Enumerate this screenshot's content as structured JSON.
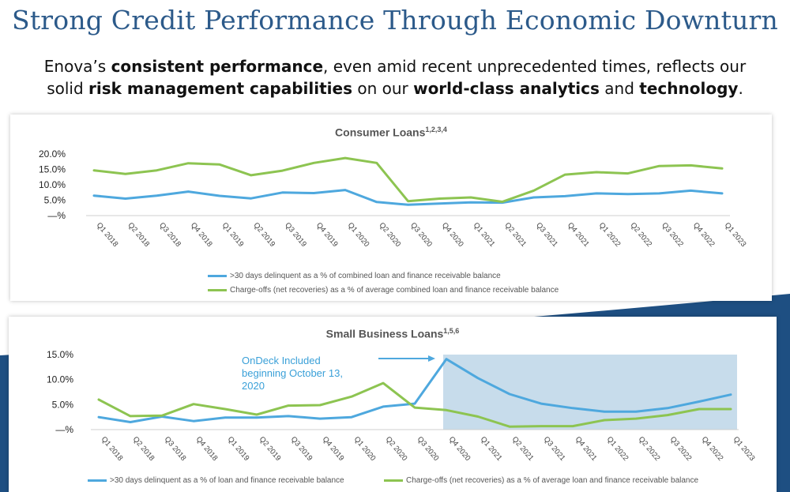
{
  "title": "Strong Credit Performance Through Economic Downturn",
  "subtitle": {
    "t1": "Enova’s ",
    "b1": "consistent performance",
    "t2": ", even amid recent unprecedented times, reflects our solid ",
    "b2": "risk management capabilities",
    "t3": " on our ",
    "b3": "world-class analytics",
    "t4": " and ",
    "b4": "technology",
    "t5": "."
  },
  "colors": {
    "blue": "#4ea8de",
    "green": "#8dc451",
    "title": "#2c5a8a",
    "shade": "#b9d3e6",
    "navy": "#1e4f82"
  },
  "chart_data": [
    {
      "type": "line",
      "title": "Consumer Loans",
      "title_sup": "1,2,3,4",
      "categories": [
        "Q1 2018",
        "Q2 2018",
        "Q3 2018",
        "Q4 2018",
        "Q1 2019",
        "Q2 2019",
        "Q3 2019",
        "Q4 2019",
        "Q1 2020",
        "Q2 2020",
        "Q3 2020",
        "Q4 2020",
        "Q1 2021",
        "Q2 2021",
        "Q3 2021",
        "Q4 2021",
        "Q1 2022",
        "Q2 2022",
        "Q3 2022",
        "Q4 2022",
        "Q1 2023"
      ],
      "yticks": [
        "20.0%",
        "15.0%",
        "10.0%",
        "5.0%",
        "—%"
      ],
      "ylim": [
        0,
        20
      ],
      "series": [
        {
          "name": ">30 days delinquent as a % of combined loan and finance receivable balance",
          "color": "#4ea8de",
          "values": [
            6.5,
            5.5,
            6.5,
            7.8,
            6.4,
            5.6,
            7.5,
            7.3,
            8.3,
            4.4,
            3.5,
            3.9,
            4.3,
            4.2,
            5.9,
            6.3,
            7.2,
            7.0,
            7.2,
            8.1,
            7.2
          ]
        },
        {
          "name": "Charge-offs (net recoveries) as a % of average combined loan and finance receivable balance",
          "color": "#8dc451",
          "values": [
            14.7,
            13.5,
            14.7,
            17.0,
            16.6,
            13.1,
            14.6,
            17.1,
            18.7,
            17.1,
            4.7,
            5.5,
            5.9,
            4.5,
            8.1,
            13.3,
            14.1,
            13.7,
            16.1,
            16.3,
            15.3
          ]
        }
      ],
      "grid": false,
      "legend": "bottom"
    },
    {
      "type": "line",
      "title": "Small Business Loans",
      "title_sup": "1,5,6",
      "categories": [
        "Q1 2018",
        "Q2 2018",
        "Q3 2018",
        "Q4 2018",
        "Q1 2019",
        "Q2 2019",
        "Q3 2019",
        "Q4 2019",
        "Q1 2020",
        "Q2 2020",
        "Q3 2020",
        "Q4 2020",
        "Q1 2021",
        "Q2 2021",
        "Q3 2021",
        "Q4 2021",
        "Q1 2022",
        "Q2 2022",
        "Q3 2022",
        "Q4 2022",
        "Q1 2023"
      ],
      "yticks": [
        "15.0%",
        "10.0%",
        "5.0%",
        "—%"
      ],
      "ylim": [
        0,
        15
      ],
      "series": [
        {
          "name": ">30 days delinquent as a % of loan and finance receivable balance",
          "color": "#4ea8de",
          "values": [
            2.5,
            1.5,
            2.6,
            1.7,
            2.4,
            2.4,
            2.7,
            2.2,
            2.5,
            4.6,
            5.2,
            14.1,
            10.3,
            7.1,
            5.2,
            4.3,
            3.6,
            3.6,
            4.3,
            5.6,
            7.0
          ]
        },
        {
          "name": "Charge-offs (net recoveries) as a % of average loan and finance receivable balance",
          "color": "#8dc451",
          "values": [
            6.0,
            2.7,
            2.8,
            5.1,
            4.1,
            3.0,
            4.8,
            4.9,
            6.6,
            9.3,
            4.4,
            3.9,
            2.6,
            0.6,
            0.7,
            0.7,
            1.9,
            2.2,
            2.9,
            4.1,
            4.1
          ]
        }
      ],
      "highlight_from": "Q4 2020",
      "annotation": "OnDeck Included beginning October 13, 2020",
      "grid": false,
      "legend": "bottom"
    }
  ]
}
